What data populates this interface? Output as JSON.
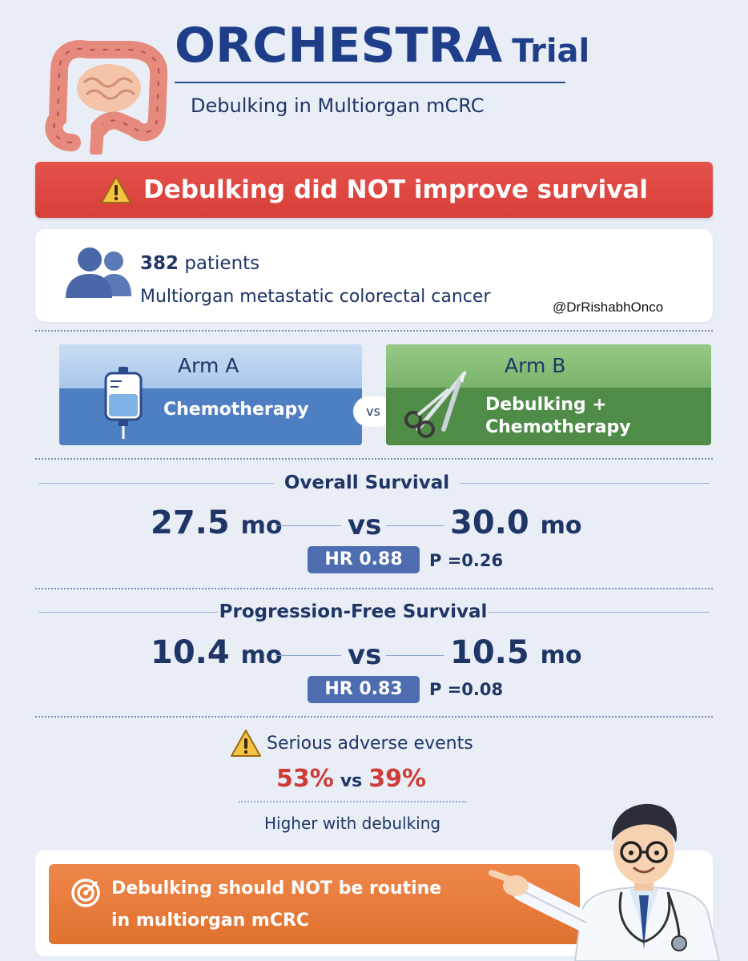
{
  "header": {
    "title_main": "ORCHESTRA",
    "title_suffix": "Trial",
    "subtitle": "Debulking in Multiorgan mCRC"
  },
  "banner": {
    "text": "Debulking did NOT improve survival"
  },
  "patients": {
    "count": "382",
    "count_suffix": "patients",
    "description": "Multiorgan metastatic colorectal cancer",
    "handle": "@DrRishabhOnco"
  },
  "arms": {
    "a": {
      "title": "Arm A",
      "treatment": "Chemotherapy"
    },
    "vs": "vs",
    "b": {
      "title": "Arm B",
      "treatment_line1": "Debulking +",
      "treatment_line2": "Chemotherapy"
    }
  },
  "overall_survival": {
    "title": "Overall Survival",
    "arm_a_value": "27.5",
    "arm_b_value": "30.0",
    "unit": "mo",
    "vs": "vs",
    "hr": "HR 0.88",
    "p": "P =0.26"
  },
  "pfs": {
    "title": "Progression-Free Survival",
    "arm_a_value": "10.4",
    "arm_b_value": "10.5",
    "unit": "mo",
    "vs": "vs",
    "hr": "HR 0.83",
    "p": "P =0.08"
  },
  "adverse_events": {
    "title": "Serious adverse events",
    "arm_b_value": "53%",
    "arm_a_value": "39%",
    "vs": "vs",
    "note": "Higher with debulking"
  },
  "conclusion": {
    "line1": "Debulking should NOT be routine",
    "line2": "in multiorgan mCRC"
  },
  "colors": {
    "navy": "#1f3566",
    "banner_red": "#dc423c",
    "arm_a_blue": "#4f7fc3",
    "arm_b_green": "#4e8c47",
    "hr_pill": "#4d6db0",
    "conclusion_orange": "#e87a3a",
    "ae_red": "#cf3b38"
  },
  "icons": [
    "colon-icon",
    "warning-icon",
    "people-icon",
    "iv-bag-icon",
    "scissors-scalpel-icon",
    "target-icon",
    "doctor-illustration"
  ]
}
